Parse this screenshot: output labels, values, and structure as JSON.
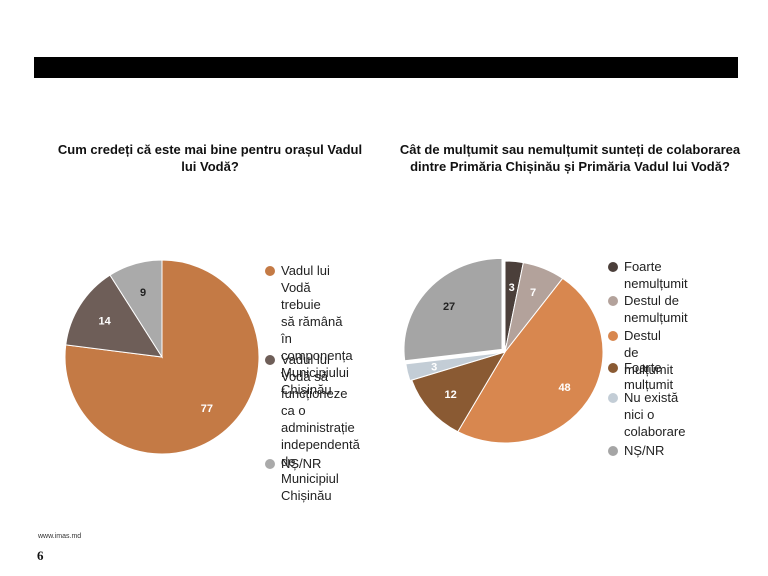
{
  "slide": {
    "url": "www.imas.md",
    "page": "6"
  },
  "chart_data": [
    {
      "type": "pie",
      "title": "Cum credeți că este mai bine pentru orașul Vadul lui Vodă?",
      "slices": [
        {
          "label": "Vadul lui Vodă trebuie\nsă rămână în\ncomponența\nMunicipiului Chișinău",
          "value": 77,
          "color": "#c47a45",
          "label_color": "#ffffff"
        },
        {
          "label": " Vadul lui Vodă să\nfuncționeze ca o\nadministrație\nindependentă de\nMunicipiul Chișinău",
          "value": 14,
          "color": "#6e5e58",
          "label_color": "#ffffff"
        },
        {
          "label": "NȘ/NR",
          "value": 9,
          "color": "#aaaaaa",
          "label_color": "#222222"
        }
      ]
    },
    {
      "type": "pie",
      "title": "Cât de mulțumit sau nemulțumit sunteți de colaborarea dintre Primăria Chișinău și Primăria Vadul lui Vodă?",
      "slices": [
        {
          "label": "Foarte nemulțumit",
          "value": 3,
          "color": "#4b3f3a",
          "label_color": "#ffffff"
        },
        {
          "label": "Destul de nemulțumit",
          "value": 7,
          "color": "#b3a29b",
          "label_color": "#ffffff"
        },
        {
          "label": "Destul de mulțumit",
          "value": 48,
          "color": "#d8874f",
          "label_color": "#ffffff"
        },
        {
          "label": "Foarte mulțumit",
          "value": 12,
          "color": "#8a5a33",
          "label_color": "#ffffff"
        },
        {
          "label": "Nu există nici o\ncolaborare",
          "value": 3,
          "color": "#c3cdd6",
          "label_color": "#ffffff"
        },
        {
          "label": "NȘ/NR",
          "value": 27,
          "color": "#a5a5a5",
          "label_color": "#222222"
        }
      ]
    }
  ]
}
